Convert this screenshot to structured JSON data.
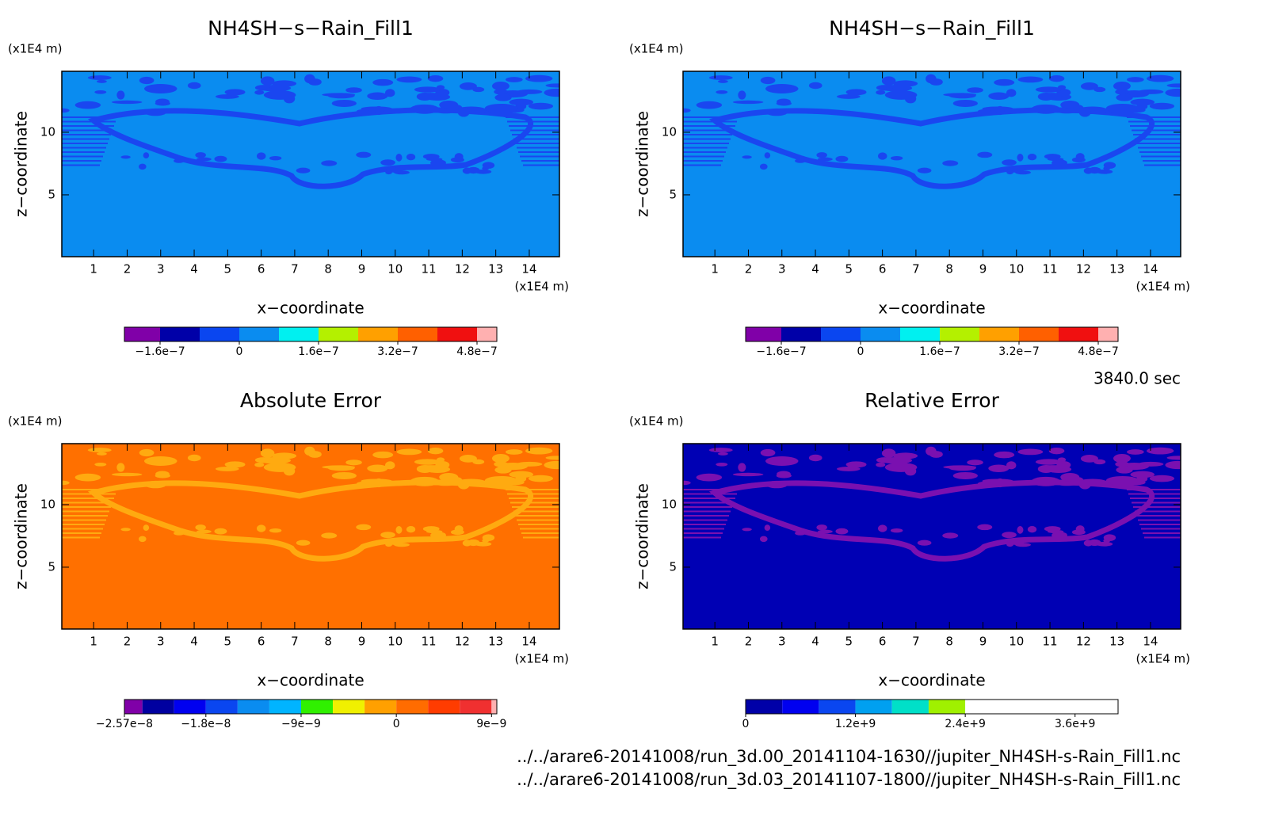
{
  "chart_data": [
    {
      "type": "contour",
      "title": "NH4SH−s−Rain_Fill1",
      "xlabel": "x−coordinate",
      "ylabel": "z−coordinate",
      "x_unit": "(x1E4 m)",
      "y_unit": "(x1E4 m)",
      "xlim": [
        0.05,
        14.9
      ],
      "ylim": [
        0.06,
        14.87
      ],
      "xticks": [
        1,
        2,
        3,
        4,
        5,
        6,
        7,
        8,
        9,
        10,
        11,
        12,
        13,
        14
      ],
      "yticks": [
        5,
        10
      ],
      "background_color": "#0a8cf0",
      "pattern_color": "#1a46f0",
      "colorbar": {
        "edges": [
          -2.32e-07,
          -1.6e-07,
          -8e-08,
          0,
          8e-08,
          1.6e-07,
          2.4e-07,
          3.2e-07,
          4e-07,
          4.8e-07,
          5.2e-07
        ],
        "colors": [
          "#8000a8",
          "#0000a8",
          "#0a46f0",
          "#0a8cf0",
          "#00f0f0",
          "#b4f000",
          "#ffa000",
          "#ff6000",
          "#f01010",
          "#ffb0b0"
        ],
        "ticks": [
          {
            "value": -1.6e-07,
            "label": "−1.6e−7"
          },
          0,
          {
            "value": 1.6e-07,
            "label": "1.6e−7"
          },
          {
            "value": 3.2e-07,
            "label": "3.2e−7"
          },
          {
            "value": 4.8e-07,
            "label": "4.8e−7"
          }
        ]
      }
    },
    {
      "type": "contour",
      "title": "NH4SH−s−Rain_Fill1",
      "xlabel": "x−coordinate",
      "ylabel": "z−coordinate",
      "x_unit": "(x1E4 m)",
      "y_unit": "(x1E4 m)",
      "xlim": [
        0.05,
        14.9
      ],
      "ylim": [
        0.06,
        14.87
      ],
      "xticks": [
        1,
        2,
        3,
        4,
        5,
        6,
        7,
        8,
        9,
        10,
        11,
        12,
        13,
        14
      ],
      "yticks": [
        5,
        10
      ],
      "background_color": "#0a8cf0",
      "pattern_color": "#1a46f0",
      "colorbar": {
        "edges": [
          -2.32e-07,
          -1.6e-07,
          -8e-08,
          0,
          8e-08,
          1.6e-07,
          2.4e-07,
          3.2e-07,
          4e-07,
          4.8e-07,
          5.2e-07
        ],
        "colors": [
          "#8000a8",
          "#0000a8",
          "#0a46f0",
          "#0a8cf0",
          "#00f0f0",
          "#b4f000",
          "#ffa000",
          "#ff6000",
          "#f01010",
          "#ffb0b0"
        ],
        "ticks": [
          {
            "value": -1.6e-07,
            "label": "−1.6e−7"
          },
          0,
          {
            "value": 1.6e-07,
            "label": "1.6e−7"
          },
          {
            "value": 3.2e-07,
            "label": "3.2e−7"
          },
          {
            "value": 4.8e-07,
            "label": "4.8e−7"
          }
        ]
      }
    },
    {
      "type": "contour",
      "title": "Absolute Error",
      "xlabel": "x−coordinate",
      "ylabel": "z−coordinate",
      "x_unit": "(x1E4 m)",
      "y_unit": "(x1E4 m)",
      "xlim": [
        0.05,
        14.9
      ],
      "ylim": [
        0.06,
        14.87
      ],
      "xticks": [
        1,
        2,
        3,
        4,
        5,
        6,
        7,
        8,
        9,
        10,
        11,
        12,
        13,
        14
      ],
      "yticks": [
        5,
        10
      ],
      "background_color": "#ff7000",
      "pattern_color": "#ffaa10",
      "colorbar": {
        "edges": [
          -2.57e-08,
          -2.4e-08,
          -2.1e-08,
          -1.8e-08,
          -1.5e-08,
          -1.2e-08,
          -9e-09,
          -6e-09,
          -3e-09,
          0,
          3e-09,
          6e-09,
          9e-09,
          9.5e-09
        ],
        "colors": [
          "#8000a8",
          "#0000a0",
          "#0000f0",
          "#0a46f0",
          "#0a8cf0",
          "#00b4ff",
          "#30f000",
          "#f0f000",
          "#ffa000",
          "#ff6c00",
          "#ff3c00",
          "#f03030",
          "#ffb0b0"
        ],
        "ticks": [
          {
            "value": -2.57e-08,
            "label": "−2.57e−8"
          },
          {
            "value": -1.8e-08,
            "label": "−1.8e−8"
          },
          {
            "value": -9e-09,
            "label": "−9e−9"
          },
          0,
          {
            "value": 9e-09,
            "label": "9e−9"
          }
        ]
      }
    },
    {
      "type": "contour",
      "title": "Relative Error",
      "xlabel": "x−coordinate",
      "ylabel": "z−coordinate",
      "x_unit": "(x1E4 m)",
      "y_unit": "(x1E4 m)",
      "xlim": [
        0.05,
        14.9
      ],
      "ylim": [
        0.06,
        14.87
      ],
      "xticks": [
        1,
        2,
        3,
        4,
        5,
        6,
        7,
        8,
        9,
        10,
        11,
        12,
        13,
        14
      ],
      "yticks": [
        5,
        10
      ],
      "background_color": "#0000b4",
      "pattern_color": "#7a10b0",
      "colorbar": {
        "edges": [
          0,
          400000000.0,
          800000000.0,
          1200000000.0,
          1600000000.0,
          2000000000.0,
          2400000000.0,
          4070000000.0
        ],
        "colors": [
          "#0000a8",
          "#0000f0",
          "#0a46f0",
          "#00a0f0",
          "#00e0c8",
          "#a0f000",
          "#ffffff"
        ],
        "ticks": [
          0,
          {
            "value": 1200000000.0,
            "label": "1.2e+9"
          },
          {
            "value": 2400000000.0,
            "label": "2.4e+9"
          },
          {
            "value": 3600000000.0,
            "label": "3.6e+9"
          }
        ]
      }
    }
  ],
  "time_label": "3840.0 sec",
  "files": [
    "../../arare6-20141008/run_3d.00_20141104-1630//jupiter_NH4SH-s-Rain_Fill1.nc",
    "../../arare6-20141008/run_3d.03_20141107-1800//jupiter_NH4SH-s-Rain_Fill1.nc"
  ]
}
